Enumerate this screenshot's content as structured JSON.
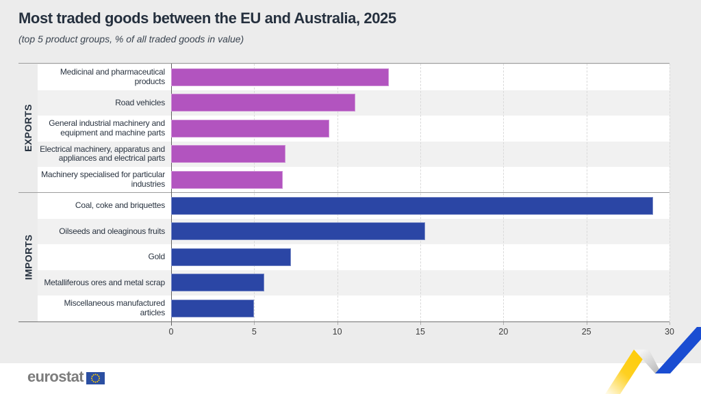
{
  "title": "Most traded goods between the EU and Australia, 2025",
  "subtitle": "(top 5 product groups, % of all traded goods in value)",
  "chart_data": {
    "type": "bar",
    "orientation": "horizontal",
    "xlabel": "% of all traded goods in value",
    "xlim": [
      0,
      30
    ],
    "x_ticks": [
      0,
      5,
      10,
      15,
      20,
      25,
      30
    ],
    "grid": "dashed-vertical",
    "sections": [
      {
        "name": "EXPORTS",
        "color": "#b254bf",
        "rows": [
          {
            "label": "Medicinal and pharmaceutical products",
            "value": 13.1
          },
          {
            "label": "Road vehicles",
            "value": 11.1
          },
          {
            "label": "General industrial machinery and equipment and machine parts",
            "value": 9.5
          },
          {
            "label": "Electrical machinery, apparatus and appliances and electrical parts",
            "value": 6.9
          },
          {
            "label": "Machinery specialised for particular industries",
            "value": 6.7
          }
        ]
      },
      {
        "name": "IMPORTS",
        "color": "#2b46a5",
        "rows": [
          {
            "label": "Coal, coke and briquettes",
            "value": 29.0
          },
          {
            "label": "Oilseeds and oleaginous fruits",
            "value": 15.3
          },
          {
            "label": "Gold",
            "value": 7.2
          },
          {
            "label": "Metalliferous ores and metal scrap",
            "value": 5.6
          },
          {
            "label": "Miscellaneous manufactured articles",
            "value": 5.0
          }
        ]
      }
    ]
  },
  "footer": {
    "logo_text": "eurostat"
  },
  "colors": {
    "background": "#ececec",
    "row_white": "#ffffff",
    "row_gray": "#f1f1f1",
    "export_bar": "#b254bf",
    "import_bar": "#2b46a5",
    "title_text": "#25303e",
    "ribbon_yellow": "#fecb00",
    "ribbon_blue": "#1a4dd2",
    "eu_flag_blue": "#2b4fa2",
    "eu_flag_stars": "#ffcc00"
  }
}
